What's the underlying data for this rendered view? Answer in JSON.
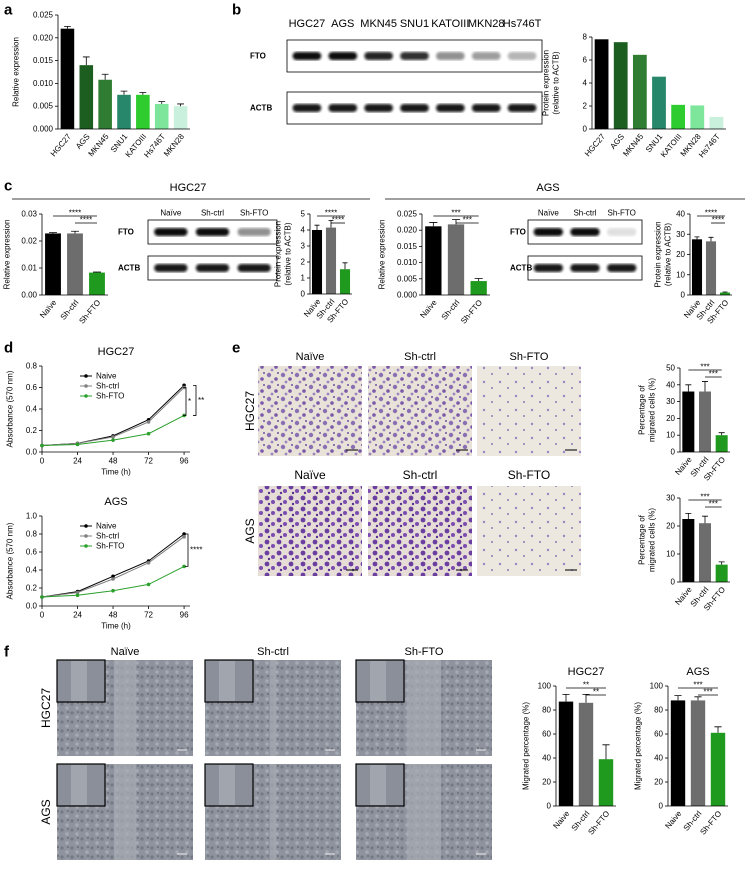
{
  "figure": {
    "panels": [
      "a",
      "b",
      "c",
      "d",
      "e",
      "f"
    ],
    "headers": [
      "HGC27",
      "AGS"
    ]
  },
  "blots": [
    {
      "columns": [
        "HGC27",
        "AGS",
        "MKN45",
        "SNU1",
        "KATOIII",
        "MKN28",
        "Hs746T"
      ],
      "rows": [
        "FTO",
        "ACTB"
      ]
    },
    {
      "columns": [
        "Naïve",
        "Sh-ctrl",
        "Sh-FTO"
      ],
      "rows": [
        "FTO",
        "ACTB"
      ]
    },
    {
      "columns": [
        "Naïve",
        "Sh-ctrl",
        "Sh-FTO"
      ],
      "rows": [
        "FTO",
        "ACTB"
      ]
    }
  ],
  "micrographs": {
    "e": {
      "rows": [
        "HGC27",
        "AGS"
      ],
      "columns": [
        [
          "Naïve",
          "Sh-ctrl",
          "Sh-FTO"
        ],
        [
          "Naïve",
          "Sh-ctrl",
          "Sh-FTO"
        ]
      ]
    },
    "f": {
      "rows": [
        "HGC27",
        "AGS"
      ],
      "columns": [
        "Naïve",
        "Sh-ctrl",
        "Sh-FTO"
      ]
    }
  },
  "chart_data": [
    {
      "type": "bar",
      "ylabel": [
        "Relative expression"
      ],
      "categories": [
        "HGC27",
        "AGS",
        "MKN45",
        "SNU1",
        "KATOIII",
        "Hs746T",
        "MKN28"
      ],
      "values": [
        0.022,
        0.014,
        0.0108,
        0.0075,
        0.0075,
        0.0055,
        0.005
      ],
      "errors": [
        0.0005,
        0.0018,
        0.0012,
        0.0008,
        0.0005,
        0.0005,
        0.0005
      ],
      "colors": [
        "#000000",
        "#1b5e20",
        "#2e7d32",
        "#26876a",
        "#2ecc2e",
        "#7de69a",
        "#c8f0dc"
      ],
      "ylim": [
        0,
        0.025
      ],
      "yticks": [
        {
          "value": 0,
          "label": "0.000"
        },
        0.005,
        {
          "value": 0.01,
          "label": "0.010"
        },
        0.015,
        {
          "value": 0.02,
          "label": "0.020"
        },
        0.025
      ]
    },
    {
      "type": "bar",
      "ylabel": [
        "Protein expression",
        "(relative to ACTB)"
      ],
      "categories": [
        "HGC27",
        "AGS",
        "MKN45",
        "SNU1",
        "KATOIII",
        "MKN28",
        "Hs746T"
      ],
      "values": [
        7.8,
        7.55,
        6.45,
        4.55,
        2.1,
        2.05,
        1.05
      ],
      "colors": [
        "#000000",
        "#1b5e20",
        "#2e7d32",
        "#26876a",
        "#2ecc2e",
        "#7de69a",
        "#c8f0dc"
      ],
      "ylim": [
        0,
        8
      ],
      "yticks": [
        0,
        2,
        4,
        6,
        8
      ]
    },
    {
      "type": "bar",
      "ylabel": [
        "Relative expression"
      ],
      "categories": [
        "Naïve",
        "Sh-ctrl",
        "Sh-FTO"
      ],
      "values": [
        0.0228,
        0.0228,
        0.0083
      ],
      "errors": [
        0.0003,
        0.0008,
        0.0002
      ],
      "colors": [
        "#000000",
        "#6d6d6d",
        "#1f9a1f"
      ],
      "ylim": [
        0,
        0.03
      ],
      "yticks": [
        {
          "value": 0,
          "label": "0.00"
        },
        0.01,
        0.02,
        0.03
      ],
      "annotations": [
        "****",
        "****"
      ]
    },
    {
      "type": "bar",
      "ylabel": [
        "Protein expression",
        "(relative to ACTB)"
      ],
      "categories": [
        "Naïve",
        "Sh-ctrl",
        "Sh-FTO"
      ],
      "values": [
        4.0,
        4.15,
        1.55
      ],
      "errors": [
        0.3,
        0.45,
        0.4
      ],
      "colors": [
        "#000000",
        "#6d6d6d",
        "#1f9a1f"
      ],
      "ylim": [
        0,
        5
      ],
      "yticks": [
        0,
        1,
        2,
        3,
        4,
        5
      ],
      "annotations": [
        "****",
        "****"
      ]
    },
    {
      "type": "bar",
      "ylabel": [
        "Relative expression"
      ],
      "categories": [
        "Naïve",
        "Sh-ctrl",
        "Sh-FTO"
      ],
      "values": [
        0.0212,
        0.0218,
        0.0043
      ],
      "errors": [
        0.0012,
        0.0015,
        0.0008
      ],
      "colors": [
        "#000000",
        "#6d6d6d",
        "#1f9a1f"
      ],
      "ylim": [
        0,
        0.025
      ],
      "yticks": [
        {
          "value": 0,
          "label": "0.000"
        },
        0.005,
        {
          "value": 0.01,
          "label": "0.010"
        },
        0.015,
        {
          "value": 0.02,
          "label": "0.020"
        },
        0.025
      ],
      "annotations": [
        "***",
        "***"
      ]
    },
    {
      "type": "bar",
      "ylabel": [
        "Protein expression",
        "(relative to ACTB)"
      ],
      "categories": [
        "Naïve",
        "Sh-ctrl",
        "Sh-FTO"
      ],
      "values": [
        27.5,
        26.5,
        1.2
      ],
      "errors": [
        1.2,
        2,
        0.3
      ],
      "colors": [
        "#000000",
        "#6d6d6d",
        "#1f9a1f"
      ],
      "ylim": [
        0,
        40
      ],
      "yticks": [
        0,
        10,
        20,
        30,
        40
      ],
      "annotations": [
        "****",
        "****"
      ]
    },
    {
      "type": "line",
      "title": "HGC27",
      "xlabel": "Time (h)",
      "ylabel": [
        "Absorbance (570 nm)"
      ],
      "x": [
        0,
        24,
        48,
        72,
        96
      ],
      "xlim": [
        0,
        100
      ],
      "xticks": [
        0,
        24,
        48,
        72,
        96
      ],
      "ylim": [
        0,
        0.8
      ],
      "yticks": [
        {
          "value": 0,
          "label": "0.0"
        },
        0.2,
        0.4,
        0.6,
        0.8
      ],
      "series": [
        {
          "name": "Naive",
          "color": "#000000",
          "values": [
            0.06,
            0.08,
            0.15,
            0.3,
            0.62
          ]
        },
        {
          "name": "Sh-ctrl",
          "color": "#808080",
          "values": [
            0.06,
            0.08,
            0.14,
            0.28,
            0.6
          ]
        },
        {
          "name": "Sh-FTO",
          "color": "#2ca02c",
          "values": [
            0.06,
            0.07,
            0.11,
            0.17,
            0.34
          ]
        }
      ],
      "annotations": [
        "**",
        "*"
      ]
    },
    {
      "type": "line",
      "title": "AGS",
      "xlabel": "Time (h)",
      "ylabel": [
        "Absorbance (570 nm)"
      ],
      "x": [
        0,
        24,
        48,
        72,
        96
      ],
      "xlim": [
        0,
        100
      ],
      "xticks": [
        0,
        24,
        48,
        72,
        96
      ],
      "ylim": [
        0,
        1
      ],
      "yticks": [
        {
          "value": 0,
          "label": "0.0"
        },
        0.2,
        0.4,
        0.6,
        0.8,
        {
          "value": 1,
          "label": "1.0"
        }
      ],
      "series": [
        {
          "name": "Naive",
          "color": "#000000",
          "values": [
            0.1,
            0.16,
            0.33,
            0.5,
            0.8
          ]
        },
        {
          "name": "Sh-ctrl",
          "color": "#808080",
          "values": [
            0.1,
            0.15,
            0.3,
            0.48,
            0.77
          ]
        },
        {
          "name": "Sh-FTO",
          "color": "#2ca02c",
          "values": [
            0.1,
            0.12,
            0.17,
            0.24,
            0.44
          ]
        }
      ],
      "annotations": [
        "****"
      ]
    },
    {
      "type": "bar",
      "ylabel": [
        "Percentage of",
        "migrated cells (%)"
      ],
      "categories": [
        "Naïve",
        "Sh-ctrl",
        "Sh-FTO"
      ],
      "values": [
        36,
        36,
        10
      ],
      "errors": [
        4,
        6,
        1.5
      ],
      "colors": [
        "#000000",
        "#6d6d6d",
        "#1f9a1f"
      ],
      "ylim": [
        0,
        50
      ],
      "yticks": [
        0,
        10,
        20,
        30,
        40,
        50
      ],
      "annotations": [
        "***",
        "***"
      ]
    },
    {
      "type": "bar",
      "ylabel": [
        "Percentage of",
        "migrated cells (%)"
      ],
      "categories": [
        "Naïve",
        "Sh-ctrl",
        "Sh-FTO"
      ],
      "values": [
        22.5,
        21,
        6.2
      ],
      "errors": [
        2,
        2.5,
        1
      ],
      "colors": [
        "#000000",
        "#6d6d6d",
        "#1f9a1f"
      ],
      "ylim": [
        0,
        30
      ],
      "yticks": [
        0,
        10,
        20,
        30
      ],
      "annotations": [
        "***",
        "***"
      ]
    },
    {
      "type": "bar",
      "title": "HGC27",
      "ylabel": [
        "Migrated percentage (%)"
      ],
      "categories": [
        "Naive",
        "Sh-ctrl",
        "Sh-FTO"
      ],
      "values": [
        87,
        86,
        39
      ],
      "errors": [
        6,
        7,
        12
      ],
      "colors": [
        "#000000",
        "#6d6d6d",
        "#1f9a1f"
      ],
      "ylim": [
        0,
        100
      ],
      "yticks": [
        0,
        20,
        40,
        60,
        80,
        100
      ],
      "annotations": [
        "**",
        "**"
      ]
    },
    {
      "type": "bar",
      "title": "AGS",
      "ylabel": [
        "Migrated percentage (%)"
      ],
      "categories": [
        "Naive",
        "Sh-ctrl",
        "Sh-FTO"
      ],
      "values": [
        88,
        88,
        61
      ],
      "errors": [
        4,
        3,
        5
      ],
      "colors": [
        "#000000",
        "#6d6d6d",
        "#1f9a1f"
      ],
      "ylim": [
        0,
        100
      ],
      "yticks": [
        0,
        20,
        40,
        60,
        80,
        100
      ],
      "annotations": [
        "***",
        "***"
      ]
    }
  ]
}
